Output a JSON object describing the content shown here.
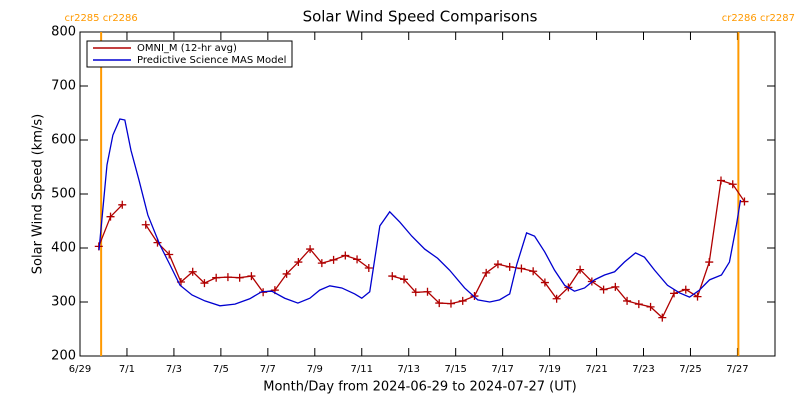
{
  "chart_data": {
    "type": "line",
    "title": "Solar Wind Speed Comparisons",
    "x_label": "Month/Day from 2024-06-29 to 2024-07-27 (UT)",
    "y_label": "Solar Wind Speed (km/s)",
    "xlim": [
      0,
      29.6
    ],
    "xticks": [
      {
        "value": 0,
        "label": "6/29"
      },
      {
        "value": 2,
        "label": "7/1"
      },
      {
        "value": 4,
        "label": "7/3"
      },
      {
        "value": 6,
        "label": "7/5"
      },
      {
        "value": 8,
        "label": "7/7"
      },
      {
        "value": 10,
        "label": "7/9"
      },
      {
        "value": 12,
        "label": "7/11"
      },
      {
        "value": 14,
        "label": "7/13"
      },
      {
        "value": 16,
        "label": "7/15"
      },
      {
        "value": 18,
        "label": "7/17"
      },
      {
        "value": 20,
        "label": "7/19"
      },
      {
        "value": 22,
        "label": "7/21"
      },
      {
        "value": 24,
        "label": "7/23"
      },
      {
        "value": 26,
        "label": "7/25"
      },
      {
        "value": 28,
        "label": "7/27"
      }
    ],
    "ylim": [
      200,
      800
    ],
    "yticks": [
      200,
      300,
      400,
      500,
      600,
      700,
      800
    ],
    "legend": "upper left",
    "annotation_color": "#ff9900",
    "annotations": [
      {
        "x": 0.9,
        "label": "cr2285 cr2286"
      },
      {
        "x": 28.04,
        "label": "cr2286 cr2287"
      }
    ],
    "series": [
      {
        "name": "OMNI_M (12-hr avg)",
        "color": "#b00000",
        "markers": true,
        "x": [
          0.8,
          1.3,
          1.8,
          2.3,
          2.8,
          3.3,
          3.8,
          4.3,
          4.8,
          5.3,
          5.8,
          6.3,
          6.8,
          7.3,
          7.8,
          8.3,
          8.8,
          9.3,
          9.8,
          10.3,
          10.8,
          11.3,
          11.8,
          12.3,
          12.8,
          13.3,
          13.8,
          14.3,
          14.8,
          15.3,
          15.8,
          16.3,
          16.8,
          17.3,
          17.8,
          18.3,
          18.8,
          19.3,
          19.8,
          20.3,
          20.8,
          21.3,
          21.8,
          22.3,
          22.8,
          23.3,
          23.8,
          24.3,
          24.8,
          25.3,
          25.8,
          26.3,
          26.8,
          27.3,
          27.8,
          28.3
        ],
        "values": [
          403,
          458,
          480,
          null,
          443,
          410,
          388,
          337,
          356,
          335,
          345,
          346,
          345,
          348,
          318,
          322,
          352,
          374,
          398,
          372,
          378,
          386,
          379,
          363,
          null,
          348,
          342,
          318,
          319,
          298,
          297,
          302,
          311,
          354,
          370,
          365,
          362,
          357,
          336,
          306,
          327,
          360,
          338,
          323,
          328,
          302,
          296,
          291,
          271,
          316,
          323,
          310,
          374,
          525,
          518,
          486
        ]
      },
      {
        "name": "Predictive Science MAS Model",
        "color": "#0000d0",
        "markers": false,
        "x": [
          0.81,
          1.15,
          1.4,
          1.7,
          1.91,
          2.17,
          2.51,
          2.89,
          3.4,
          3.83,
          4.26,
          4.77,
          5.32,
          5.96,
          6.6,
          7.23,
          7.74,
          8.17,
          8.72,
          9.28,
          9.79,
          10.21,
          10.64,
          11.15,
          11.7,
          12.0,
          12.34,
          12.77,
          13.19,
          13.62,
          14.13,
          14.68,
          15.23,
          15.74,
          16.38,
          16.94,
          17.45,
          17.87,
          18.3,
          18.6,
          19.02,
          19.36,
          19.79,
          20.21,
          20.64,
          21.06,
          21.49,
          21.91,
          22.34,
          22.77,
          23.19,
          23.66,
          24.04,
          24.47,
          25.02,
          25.53,
          25.96,
          26.38,
          26.81,
          27.32,
          27.66,
          27.96,
          28.13
        ],
        "values": [
          396,
          554,
          609,
          639,
          637,
          581,
          526,
          461,
          406,
          369,
          331,
          313,
          302,
          293,
          296,
          306,
          319,
          320,
          307,
          298,
          307,
          322,
          330,
          326,
          315,
          307,
          319,
          441,
          467,
          448,
          422,
          398,
          381,
          359,
          326,
          304,
          300,
          304,
          315,
          369,
          428,
          422,
          393,
          359,
          331,
          320,
          326,
          341,
          350,
          356,
          374,
          391,
          383,
          359,
          331,
          317,
          309,
          322,
          341,
          350,
          374,
          443,
          489
        ]
      }
    ]
  }
}
